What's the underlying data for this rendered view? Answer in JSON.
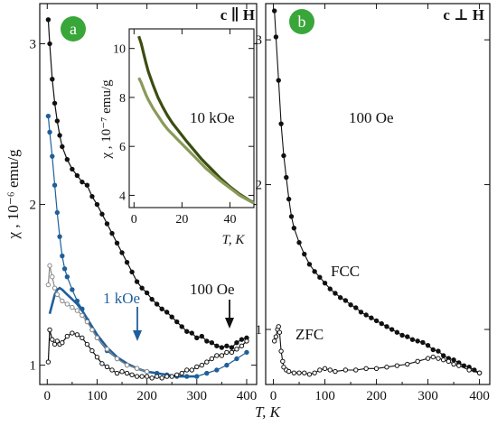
{
  "figure": {
    "panel_a_label": "a",
    "panel_b_label": "b",
    "panel_a_title": "c ∥ H",
    "panel_b_title": "c ⊥ H",
    "ylabel": "χ , 10⁻⁶ emu/g",
    "xlabel": "T, K",
    "label_100Oe_a": "100 Oe",
    "label_1kOe": "1 kOe",
    "label_100Oe_b": "100 Oe",
    "label_fcc": "FCC",
    "label_zfc": "ZFC",
    "inset_field": "10 kOe",
    "inset_ylabel": "χ , 10⁻⁷ emu/g",
    "inset_xlabel": "T, K",
    "colors": {
      "black_series": "#111111",
      "blue_series": "#1f5f9a",
      "gray_series": "#8a8a8a",
      "inset_dark": "#3b4d10",
      "inset_light": "#8a9a5a",
      "badge": "#39a639"
    }
  },
  "chart_data": [
    {
      "type": "scatter",
      "panel": "a",
      "xlim": [
        -15,
        420
      ],
      "ylim": [
        0.88,
        3.25
      ],
      "xticks": [
        0,
        100,
        200,
        300,
        400
      ],
      "xtick_minor": [
        50,
        150,
        250,
        350
      ],
      "yticks": [
        1,
        2,
        3
      ],
      "series": [
        {
          "name": "100 Oe",
          "color": "#111111",
          "marker": "filled",
          "x": [
            2,
            5,
            10,
            15,
            20,
            25,
            30,
            40,
            50,
            60,
            70,
            80,
            90,
            100,
            110,
            120,
            130,
            140,
            150,
            160,
            170,
            180,
            190,
            200,
            210,
            220,
            230,
            240,
            250,
            260,
            270,
            280,
            290,
            300,
            310,
            320,
            330,
            340,
            350,
            360,
            370,
            380,
            390,
            400
          ],
          "y": [
            3.15,
            3.0,
            2.78,
            2.63,
            2.52,
            2.43,
            2.36,
            2.28,
            2.22,
            2.18,
            2.14,
            2.12,
            2.05,
            2.0,
            1.94,
            1.88,
            1.82,
            1.76,
            1.7,
            1.64,
            1.58,
            1.52,
            1.48,
            1.45,
            1.41,
            1.38,
            1.35,
            1.33,
            1.3,
            1.27,
            1.24,
            1.21,
            1.2,
            1.17,
            1.18,
            1.15,
            1.14,
            1.12,
            1.11,
            1.12,
            1.11,
            1.14,
            1.16,
            1.17
          ]
        },
        {
          "name": "1 kOe",
          "color": "#1f5f9a",
          "marker": "filled",
          "x": [
            2,
            5,
            10,
            15,
            20,
            25,
            30,
            35,
            40,
            50,
            60,
            70,
            80,
            90,
            100,
            120,
            140,
            160,
            180,
            200,
            220,
            240,
            260,
            280,
            300,
            320,
            340,
            360,
            380,
            400
          ],
          "y": [
            2.55,
            2.45,
            2.3,
            2.12,
            1.95,
            1.8,
            1.68,
            1.6,
            1.55,
            1.47,
            1.4,
            1.35,
            1.28,
            1.22,
            1.17,
            1.09,
            1.04,
            1.0,
            0.98,
            0.96,
            0.95,
            0.94,
            0.93,
            0.93,
            0.93,
            0.95,
            0.97,
            1.0,
            1.04,
            1.08
          ]
        },
        {
          "name": "1 kOe (ZFC)",
          "color": "#1f5f9a",
          "marker": "line",
          "x": [
            5,
            10,
            15,
            20,
            25,
            30,
            40,
            50,
            60,
            70,
            80,
            90,
            100,
            120,
            140,
            160,
            180,
            200,
            220,
            240,
            260,
            280,
            300
          ],
          "y": [
            1.32,
            1.38,
            1.44,
            1.47,
            1.48,
            1.47,
            1.44,
            1.41,
            1.38,
            1.34,
            1.29,
            1.24,
            1.19,
            1.11,
            1.05,
            1.01,
            0.98,
            0.96,
            0.95,
            0.94,
            0.93,
            0.93,
            0.93
          ]
        },
        {
          "name": "1 kOe (open)",
          "color": "#8a8a8a",
          "marker": "open",
          "x": [
            2,
            5,
            10,
            15,
            20,
            30,
            40,
            50,
            60,
            70,
            80,
            90,
            100,
            120,
            140,
            160,
            180,
            200
          ],
          "y": [
            1.5,
            1.62,
            1.55,
            1.48,
            1.44,
            1.4,
            1.38,
            1.36,
            1.34,
            1.31,
            1.27,
            1.22,
            1.17,
            1.1,
            1.04,
            1.0,
            0.98,
            0.96
          ]
        },
        {
          "name": "100 Oe (ZFC)",
          "color": "#111111",
          "marker": "open",
          "x": [
            2,
            5,
            10,
            15,
            20,
            25,
            30,
            40,
            50,
            60,
            70,
            80,
            90,
            100,
            110,
            120,
            130,
            140,
            150,
            160,
            170,
            180,
            190,
            200,
            210,
            220,
            230,
            240,
            250,
            260,
            270,
            280,
            290,
            300,
            310,
            320,
            330,
            340,
            350,
            360,
            370,
            380,
            390,
            400
          ],
          "y": [
            1.02,
            1.22,
            1.16,
            1.13,
            1.15,
            1.13,
            1.14,
            1.18,
            1.2,
            1.19,
            1.17,
            1.13,
            1.09,
            1.05,
            1.01,
            0.99,
            0.97,
            0.95,
            0.96,
            0.95,
            0.94,
            0.93,
            0.93,
            0.93,
            0.92,
            0.93,
            0.92,
            0.93,
            0.93,
            0.94,
            0.95,
            0.97,
            0.97,
            0.99,
            1.0,
            1.02,
            1.04,
            1.06,
            1.06,
            1.08,
            1.08,
            1.1,
            1.12,
            1.15
          ]
        }
      ]
    },
    {
      "type": "line",
      "panel": "a-inset",
      "xlim": [
        -2,
        50
      ],
      "ylim": [
        3.5,
        10.8
      ],
      "xticks": [
        0,
        20,
        40
      ],
      "yticks": [
        4,
        6,
        8,
        10
      ],
      "series": [
        {
          "name": "10 kOe",
          "color": "#3b4d10",
          "x": [
            2,
            3,
            4,
            5,
            6,
            8,
            10,
            12,
            14,
            16,
            18,
            20,
            22,
            25,
            28,
            30,
            33,
            36,
            40,
            44,
            48,
            50
          ],
          "y": [
            10.5,
            10.2,
            9.8,
            9.4,
            9.05,
            8.5,
            8.0,
            7.6,
            7.25,
            6.95,
            6.7,
            6.45,
            6.2,
            5.85,
            5.5,
            5.3,
            5.0,
            4.7,
            4.35,
            4.05,
            3.8,
            3.7
          ]
        },
        {
          "name": "10 kOe ZFC",
          "color": "#8a9a5a",
          "x": [
            2,
            3,
            4,
            5,
            6,
            8,
            10,
            12,
            14,
            16,
            18,
            20,
            22,
            25,
            28,
            30,
            33,
            36,
            40,
            44,
            48,
            50
          ],
          "y": [
            8.8,
            8.6,
            8.35,
            8.1,
            7.9,
            7.55,
            7.25,
            6.95,
            6.7,
            6.5,
            6.3,
            6.1,
            5.9,
            5.6,
            5.3,
            5.1,
            4.85,
            4.6,
            4.3,
            4.0,
            3.78,
            3.68
          ]
        }
      ]
    },
    {
      "type": "line",
      "panel": "b",
      "xlim": [
        -15,
        420
      ],
      "ylim": [
        0.62,
        3.25
      ],
      "xticks": [
        0,
        100,
        200,
        300,
        400
      ],
      "xtick_minor": [
        50,
        150,
        250,
        350
      ],
      "yticks": [
        1,
        2,
        3
      ],
      "series": [
        {
          "name": "FCC",
          "color": "#111111",
          "marker": "filled",
          "x": [
            2,
            5,
            10,
            15,
            20,
            25,
            30,
            35,
            40,
            50,
            60,
            70,
            80,
            90,
            100,
            110,
            120,
            130,
            140,
            150,
            160,
            170,
            180,
            190,
            200,
            210,
            220,
            230,
            240,
            250,
            260,
            270,
            280,
            290,
            300,
            310,
            320,
            330,
            340,
            350,
            360,
            370,
            380,
            390,
            400
          ],
          "y": [
            3.2,
            3.02,
            2.72,
            2.42,
            2.2,
            2.05,
            1.9,
            1.78,
            1.7,
            1.6,
            1.52,
            1.45,
            1.4,
            1.36,
            1.32,
            1.28,
            1.25,
            1.22,
            1.2,
            1.17,
            1.15,
            1.12,
            1.1,
            1.08,
            1.06,
            1.04,
            1.02,
            1.0,
            0.98,
            0.96,
            0.95,
            0.93,
            0.92,
            0.91,
            0.89,
            0.86,
            0.85,
            0.82,
            0.8,
            0.79,
            0.77,
            0.75,
            0.74,
            0.72,
            0.7
          ]
        },
        {
          "name": "ZFC",
          "color": "#111111",
          "marker": "open",
          "x": [
            2,
            5,
            8,
            10,
            12,
            15,
            18,
            20,
            25,
            30,
            40,
            50,
            60,
            70,
            80,
            90,
            100,
            110,
            120,
            140,
            160,
            180,
            200,
            220,
            240,
            260,
            280,
            300,
            310,
            320,
            330,
            340,
            350,
            360,
            380,
            400
          ],
          "y": [
            0.92,
            0.95,
            1.0,
            1.02,
            0.98,
            0.85,
            0.78,
            0.74,
            0.72,
            0.71,
            0.7,
            0.7,
            0.7,
            0.69,
            0.7,
            0.72,
            0.73,
            0.72,
            0.71,
            0.72,
            0.72,
            0.73,
            0.73,
            0.74,
            0.75,
            0.76,
            0.78,
            0.8,
            0.81,
            0.8,
            0.79,
            0.78,
            0.76,
            0.75,
            0.72,
            0.7
          ]
        }
      ]
    }
  ]
}
